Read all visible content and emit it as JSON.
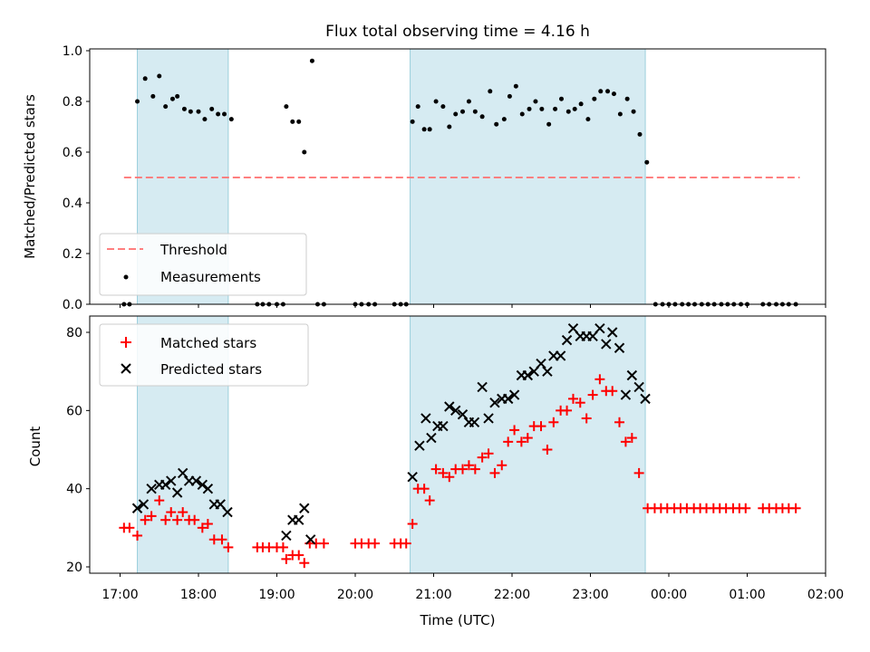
{
  "chart_data": {
    "type": "scatter",
    "title": "Flux total observing time = 4.16 h",
    "xlabel": "Time (UTC)",
    "x_ticks": [
      "17:00",
      "18:00",
      "19:00",
      "20:00",
      "21:00",
      "22:00",
      "23:00",
      "00:00",
      "01:00",
      "02:00"
    ],
    "x_tick_hours": [
      17,
      18,
      19,
      20,
      21,
      22,
      23,
      24,
      25,
      26
    ],
    "shaded_intervals_hours": [
      [
        17.22,
        18.38
      ],
      [
        20.7,
        23.7
      ]
    ],
    "top_panel": {
      "ylabel": "Matched/Predicted stars",
      "ylim": [
        0,
        1.0
      ],
      "y_ticks": [
        "0.0",
        "0.2",
        "0.4",
        "0.6",
        "0.8",
        "1.0"
      ],
      "threshold": {
        "name": "Threshold",
        "value": 0.5,
        "x_range_hours": [
          17.05,
          25.67
        ],
        "color": "#ff7f7f"
      },
      "measurements_name": "Measurements",
      "measurements": [
        [
          17.05,
          0
        ],
        [
          17.12,
          0
        ],
        [
          17.22,
          0.8
        ],
        [
          17.32,
          0.89
        ],
        [
          17.42,
          0.82
        ],
        [
          17.5,
          0.9
        ],
        [
          17.58,
          0.78
        ],
        [
          17.67,
          0.81
        ],
        [
          17.73,
          0.82
        ],
        [
          17.82,
          0.77
        ],
        [
          17.9,
          0.76
        ],
        [
          18.0,
          0.76
        ],
        [
          18.08,
          0.73
        ],
        [
          18.17,
          0.77
        ],
        [
          18.25,
          0.75
        ],
        [
          18.33,
          0.75
        ],
        [
          18.42,
          0.73
        ],
        [
          18.75,
          0
        ],
        [
          18.82,
          0
        ],
        [
          18.9,
          0
        ],
        [
          19.0,
          0
        ],
        [
          19.08,
          0
        ],
        [
          19.12,
          0.78
        ],
        [
          19.2,
          0.72
        ],
        [
          19.28,
          0.72
        ],
        [
          19.35,
          0.6
        ],
        [
          19.45,
          0.96
        ],
        [
          19.52,
          0
        ],
        [
          19.6,
          0
        ],
        [
          20.0,
          0
        ],
        [
          20.08,
          0
        ],
        [
          20.17,
          0
        ],
        [
          20.25,
          0
        ],
        [
          20.5,
          0
        ],
        [
          20.58,
          0
        ],
        [
          20.65,
          0
        ],
        [
          20.73,
          0.72
        ],
        [
          20.8,
          0.78
        ],
        [
          20.88,
          0.69
        ],
        [
          20.95,
          0.69
        ],
        [
          21.03,
          0.8
        ],
        [
          21.12,
          0.78
        ],
        [
          21.2,
          0.7
        ],
        [
          21.28,
          0.75
        ],
        [
          21.37,
          0.76
        ],
        [
          21.45,
          0.8
        ],
        [
          21.53,
          0.76
        ],
        [
          21.62,
          0.74
        ],
        [
          21.72,
          0.84
        ],
        [
          21.8,
          0.71
        ],
        [
          21.9,
          0.73
        ],
        [
          21.97,
          0.82
        ],
        [
          22.05,
          0.86
        ],
        [
          22.13,
          0.75
        ],
        [
          22.22,
          0.77
        ],
        [
          22.3,
          0.8
        ],
        [
          22.38,
          0.77
        ],
        [
          22.47,
          0.71
        ],
        [
          22.55,
          0.77
        ],
        [
          22.63,
          0.81
        ],
        [
          22.72,
          0.76
        ],
        [
          22.8,
          0.77
        ],
        [
          22.88,
          0.79
        ],
        [
          22.97,
          0.73
        ],
        [
          23.05,
          0.81
        ],
        [
          23.13,
          0.84
        ],
        [
          23.22,
          0.84
        ],
        [
          23.3,
          0.83
        ],
        [
          23.38,
          0.75
        ],
        [
          23.47,
          0.81
        ],
        [
          23.55,
          0.76
        ],
        [
          23.63,
          0.67
        ],
        [
          23.72,
          0.56
        ],
        [
          23.83,
          0
        ],
        [
          23.92,
          0
        ],
        [
          24.0,
          0
        ],
        [
          24.08,
          0
        ],
        [
          24.17,
          0
        ],
        [
          24.25,
          0
        ],
        [
          24.33,
          0
        ],
        [
          24.42,
          0
        ],
        [
          24.5,
          0
        ],
        [
          24.58,
          0
        ],
        [
          24.67,
          0
        ],
        [
          24.75,
          0
        ],
        [
          24.83,
          0
        ],
        [
          24.92,
          0
        ],
        [
          25.0,
          0
        ],
        [
          25.2,
          0
        ],
        [
          25.28,
          0
        ],
        [
          25.37,
          0
        ],
        [
          25.45,
          0
        ],
        [
          25.53,
          0
        ],
        [
          25.62,
          0
        ]
      ]
    },
    "bottom_panel": {
      "ylabel": "Count",
      "ylim": [
        18,
        84
      ],
      "y_ticks": [
        "20",
        "40",
        "60",
        "80"
      ],
      "series": [
        {
          "name": "Matched stars",
          "marker": "+",
          "color": "#ff0000",
          "points": [
            [
              17.05,
              30
            ],
            [
              17.12,
              30
            ],
            [
              17.22,
              28
            ],
            [
              17.32,
              32
            ],
            [
              17.4,
              33
            ],
            [
              17.5,
              37
            ],
            [
              17.58,
              32
            ],
            [
              17.65,
              34
            ],
            [
              17.73,
              32
            ],
            [
              17.8,
              34
            ],
            [
              17.88,
              32
            ],
            [
              17.95,
              32
            ],
            [
              18.05,
              30
            ],
            [
              18.12,
              31
            ],
            [
              18.2,
              27
            ],
            [
              18.3,
              27
            ],
            [
              18.38,
              25
            ],
            [
              18.75,
              25
            ],
            [
              18.82,
              25
            ],
            [
              18.9,
              25
            ],
            [
              19.0,
              25
            ],
            [
              19.08,
              25
            ],
            [
              19.12,
              22
            ],
            [
              19.2,
              23
            ],
            [
              19.28,
              23
            ],
            [
              19.35,
              21
            ],
            [
              19.42,
              26
            ],
            [
              19.5,
              26
            ],
            [
              19.6,
              26
            ],
            [
              20.0,
              26
            ],
            [
              20.08,
              26
            ],
            [
              20.17,
              26
            ],
            [
              20.25,
              26
            ],
            [
              20.5,
              26
            ],
            [
              20.58,
              26
            ],
            [
              20.65,
              26
            ],
            [
              20.73,
              31
            ],
            [
              20.8,
              40
            ],
            [
              20.88,
              40
            ],
            [
              20.95,
              37
            ],
            [
              21.03,
              45
            ],
            [
              21.12,
              44
            ],
            [
              21.2,
              43
            ],
            [
              21.28,
              45
            ],
            [
              21.37,
              45
            ],
            [
              21.45,
              46
            ],
            [
              21.53,
              45
            ],
            [
              21.62,
              48
            ],
            [
              21.7,
              49
            ],
            [
              21.78,
              44
            ],
            [
              21.87,
              46
            ],
            [
              21.95,
              52
            ],
            [
              22.03,
              55
            ],
            [
              22.12,
              52
            ],
            [
              22.2,
              53
            ],
            [
              22.28,
              56
            ],
            [
              22.37,
              56
            ],
            [
              22.45,
              50
            ],
            [
              22.53,
              57
            ],
            [
              22.62,
              60
            ],
            [
              22.7,
              60
            ],
            [
              22.78,
              63
            ],
            [
              22.87,
              62
            ],
            [
              22.95,
              58
            ],
            [
              23.03,
              64
            ],
            [
              23.12,
              68
            ],
            [
              23.2,
              65
            ],
            [
              23.28,
              65
            ],
            [
              23.37,
              57
            ],
            [
              23.45,
              52
            ],
            [
              23.53,
              53
            ],
            [
              23.62,
              44
            ],
            [
              23.73,
              35
            ],
            [
              23.82,
              35
            ],
            [
              23.9,
              35
            ],
            [
              23.98,
              35
            ],
            [
              24.07,
              35
            ],
            [
              24.15,
              35
            ],
            [
              24.23,
              35
            ],
            [
              24.32,
              35
            ],
            [
              24.4,
              35
            ],
            [
              24.48,
              35
            ],
            [
              24.57,
              35
            ],
            [
              24.65,
              35
            ],
            [
              24.73,
              35
            ],
            [
              24.82,
              35
            ],
            [
              24.9,
              35
            ],
            [
              24.98,
              35
            ],
            [
              25.2,
              35
            ],
            [
              25.28,
              35
            ],
            [
              25.37,
              35
            ],
            [
              25.45,
              35
            ],
            [
              25.53,
              35
            ],
            [
              25.62,
              35
            ]
          ]
        },
        {
          "name": "Predicted stars",
          "marker": "x",
          "color": "#000000",
          "points": [
            [
              17.22,
              35
            ],
            [
              17.3,
              36
            ],
            [
              17.4,
              40
            ],
            [
              17.5,
              41
            ],
            [
              17.58,
              41
            ],
            [
              17.65,
              42
            ],
            [
              17.73,
              39
            ],
            [
              17.8,
              44
            ],
            [
              17.88,
              42
            ],
            [
              17.97,
              42
            ],
            [
              18.05,
              41
            ],
            [
              18.12,
              40
            ],
            [
              18.2,
              36
            ],
            [
              18.28,
              36
            ],
            [
              18.37,
              34
            ],
            [
              19.12,
              28
            ],
            [
              19.2,
              32
            ],
            [
              19.28,
              32
            ],
            [
              19.35,
              35
            ],
            [
              19.43,
              27
            ],
            [
              20.73,
              43
            ],
            [
              20.82,
              51
            ],
            [
              20.9,
              58
            ],
            [
              20.97,
              53
            ],
            [
              21.05,
              56
            ],
            [
              21.12,
              56
            ],
            [
              21.2,
              61
            ],
            [
              21.28,
              60
            ],
            [
              21.37,
              59
            ],
            [
              21.45,
              57
            ],
            [
              21.52,
              57
            ],
            [
              21.62,
              66
            ],
            [
              21.7,
              58
            ],
            [
              21.78,
              62
            ],
            [
              21.87,
              63
            ],
            [
              21.95,
              63
            ],
            [
              22.03,
              64
            ],
            [
              22.12,
              69
            ],
            [
              22.2,
              69
            ],
            [
              22.28,
              70
            ],
            [
              22.37,
              72
            ],
            [
              22.45,
              70
            ],
            [
              22.53,
              74
            ],
            [
              22.62,
              74
            ],
            [
              22.7,
              78
            ],
            [
              22.78,
              81
            ],
            [
              22.87,
              79
            ],
            [
              22.95,
              79
            ],
            [
              23.03,
              79
            ],
            [
              23.12,
              81
            ],
            [
              23.2,
              77
            ],
            [
              23.28,
              80
            ],
            [
              23.37,
              76
            ],
            [
              23.45,
              64
            ],
            [
              23.53,
              69
            ],
            [
              23.62,
              66
            ],
            [
              23.7,
              63
            ]
          ]
        }
      ]
    }
  }
}
